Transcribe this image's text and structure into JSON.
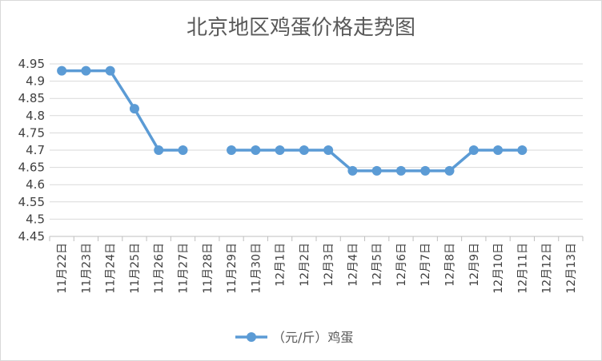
{
  "chart_data": {
    "type": "line",
    "title": "北京地区鸡蛋价格走势图",
    "categories": [
      "11月22日",
      "11月23日",
      "11月24日",
      "11月25日",
      "11月26日",
      "11月27日",
      "11月28日",
      "11月29日",
      "11月30日",
      "12月1日",
      "12月2日",
      "12月3日",
      "12月4日",
      "12月5日",
      "12月6日",
      "12月7日",
      "12月8日",
      "12月9日",
      "12月10日",
      "12月11日",
      "12月12日",
      "12月13日"
    ],
    "series": [
      {
        "name": "（元/斤）鸡蛋",
        "values": [
          4.93,
          4.93,
          4.93,
          4.82,
          4.7,
          4.7,
          null,
          4.7,
          4.7,
          4.7,
          4.7,
          4.7,
          4.64,
          4.64,
          4.64,
          4.64,
          4.64,
          4.7,
          4.7,
          4.7,
          null,
          null
        ]
      }
    ],
    "ylim": [
      4.45,
      4.95
    ],
    "yticks": [
      "4.45",
      "4.5",
      "4.55",
      "4.6",
      "4.65",
      "4.7",
      "4.75",
      "4.8",
      "4.85",
      "4.9",
      "4.95"
    ],
    "grid": true,
    "legend": "bottom",
    "colors": {
      "series": "#5b9bd5",
      "grid": "#d9d9d9",
      "axis": "#bfbfbf"
    }
  }
}
